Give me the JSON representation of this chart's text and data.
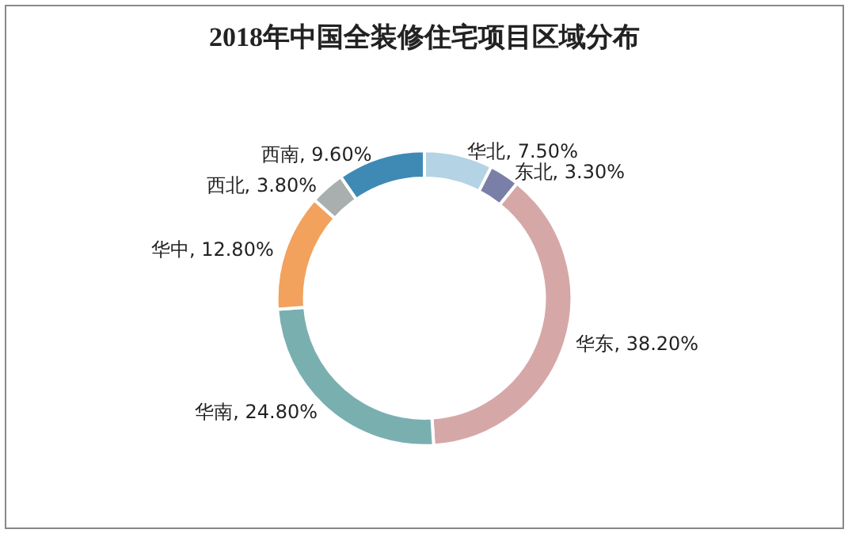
{
  "chart_data": {
    "type": "donut",
    "title": "2018年中国全装修住宅项目区域分布",
    "categories": [
      "华北",
      "东北",
      "华东",
      "华南",
      "华中",
      "西北",
      "西南"
    ],
    "values": [
      7.5,
      3.3,
      38.2,
      24.8,
      12.8,
      3.8,
      9.6
    ],
    "colors": [
      "#b4d3e4",
      "#7a7fa8",
      "#d5a8a7",
      "#7aafb0",
      "#f2a25c",
      "#a9afaf",
      "#3f8ab5"
    ],
    "value_labels": [
      "7.50%",
      "3.30%",
      "38.20%",
      "24.80%",
      "12.80%",
      "3.80%",
      "9.60%"
    ],
    "legend": false
  }
}
